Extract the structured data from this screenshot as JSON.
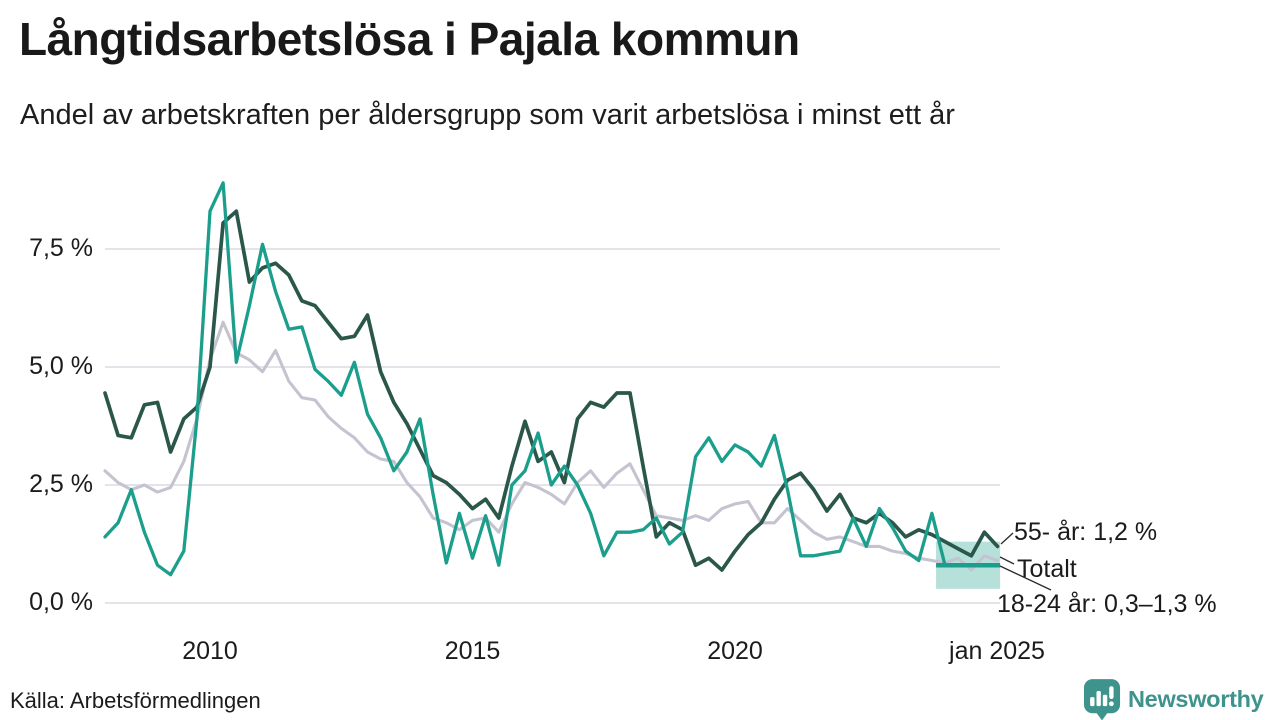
{
  "header": {
    "title": "Långtidsarbetslösa i Pajala kommun",
    "subtitle": "Andel av arbetskraften per åldersgrupp som varit arbetslösa i minst ett år"
  },
  "annotations": {
    "age55": "55- år: 1,2 %",
    "total": "Totalt",
    "age1824": "18-24 år: 0,3–1,3 %"
  },
  "footer": {
    "source": "Källa: Arbetsförmedlingen",
    "brand": "Newsworthy"
  },
  "colors": {
    "age55": "#2B574B",
    "total": "#C6C3D1",
    "age1824": "#1B9E8C",
    "grid": "#E4E3E9",
    "band_fill": "#1B9E8C",
    "text": "#1B1B1B",
    "brand": "#3E948C",
    "connector": "#2b2b2b"
  },
  "chart_data": {
    "type": "line",
    "title": "Långtidsarbetslösa i Pajala kommun",
    "subtitle": "Andel av arbetskraften per åldersgrupp som varit arbetslösa i minst ett år",
    "x_start": 2008,
    "x_step": 0.25,
    "xlim": [
      2008,
      2025.05
    ],
    "ylim": [
      0,
      9.3
    ],
    "grid": "horizontal-only",
    "legend_position": "end-of-line-labels",
    "y_ticks": [
      {
        "value": 0,
        "label": "0,0 %"
      },
      {
        "value": 2.5,
        "label": "2,5 %"
      },
      {
        "value": 5,
        "label": "5,0 %"
      },
      {
        "value": 7.5,
        "label": "7,5 %"
      }
    ],
    "x_ticks": [
      {
        "value": 2010,
        "label": "2010"
      },
      {
        "value": 2015,
        "label": "2015"
      },
      {
        "value": 2020,
        "label": "2020"
      },
      {
        "value": 2025,
        "label": "jan 2025"
      }
    ],
    "series": [
      {
        "name": "Totalt",
        "color": "#C6C3D1",
        "width": 3.1,
        "end_value": 0.9,
        "values": [
          2.8,
          2.55,
          2.4,
          2.5,
          2.35,
          2.45,
          3.0,
          3.9,
          5.15,
          5.95,
          5.3,
          5.15,
          4.9,
          5.35,
          4.7,
          4.35,
          4.3,
          3.95,
          3.7,
          3.5,
          3.2,
          3.05,
          3.0,
          2.55,
          2.25,
          1.8,
          1.7,
          1.55,
          1.75,
          1.8,
          1.5,
          2.1,
          2.55,
          2.45,
          2.3,
          2.1,
          2.55,
          2.8,
          2.45,
          2.75,
          2.95,
          2.4,
          1.85,
          1.8,
          1.75,
          1.85,
          1.75,
          2.0,
          2.1,
          2.15,
          1.7,
          1.7,
          2.0,
          1.75,
          1.5,
          1.35,
          1.4,
          1.3,
          1.2,
          1.2,
          1.1,
          1.05,
          0.95,
          0.9,
          0.85,
          0.95,
          0.7,
          1.0,
          0.9
        ]
      },
      {
        "name": "55- år",
        "color": "#2B574B",
        "width": 3.7,
        "end_value": 1.2,
        "values": [
          4.45,
          3.55,
          3.5,
          4.2,
          4.25,
          3.2,
          3.9,
          4.15,
          5.0,
          8.05,
          8.3,
          6.8,
          7.1,
          7.2,
          6.95,
          6.4,
          6.3,
          5.95,
          5.6,
          5.65,
          6.1,
          4.9,
          4.25,
          3.8,
          3.25,
          2.7,
          2.55,
          2.3,
          2.0,
          2.2,
          1.8,
          2.9,
          3.85,
          3.0,
          3.2,
          2.55,
          3.9,
          4.25,
          4.15,
          4.45,
          4.45,
          2.9,
          1.4,
          1.7,
          1.55,
          0.8,
          0.95,
          0.7,
          1.1,
          1.45,
          1.7,
          2.2,
          2.6,
          2.75,
          2.4,
          1.95,
          2.3,
          1.8,
          1.7,
          1.9,
          1.7,
          1.4,
          1.55,
          1.45,
          1.3,
          1.15,
          1.0,
          1.5,
          1.2
        ]
      },
      {
        "name": "18-24 år",
        "color": "#1B9E8C",
        "width": 3.3,
        "end_value": 0.8,
        "values": [
          1.4,
          1.7,
          2.4,
          1.5,
          0.8,
          0.6,
          1.1,
          3.9,
          8.3,
          8.9,
          5.1,
          6.3,
          7.6,
          6.6,
          5.8,
          5.85,
          4.95,
          4.7,
          4.4,
          5.1,
          4.0,
          3.5,
          2.8,
          3.2,
          3.9,
          2.3,
          0.85,
          1.9,
          0.95,
          1.85,
          0.8,
          2.5,
          2.8,
          3.6,
          2.5,
          2.9,
          2.5,
          1.9,
          1.0,
          1.5,
          1.5,
          1.55,
          1.8,
          1.25,
          1.5,
          3.1,
          3.5,
          3.0,
          3.35,
          3.2,
          2.9,
          3.55,
          2.4,
          1.0,
          1.0,
          1.05,
          1.1,
          1.8,
          1.2,
          2.0,
          1.6,
          1.1,
          0.9,
          1.9,
          0.8,
          0.8,
          0.8,
          0.8,
          0.8
        ]
      }
    ],
    "uncertainty_band": {
      "series": "18-24 år",
      "x_from": 2023.83,
      "x_to": 2025.05,
      "low": 0.3,
      "high": 1.3,
      "center": 0.8,
      "fill": "#1B9E8C",
      "opacity": 0.32
    },
    "end_labels": [
      "55- år: 1,2 %",
      "Totalt",
      "18-24 år: 0,3–1,3 %"
    ]
  }
}
